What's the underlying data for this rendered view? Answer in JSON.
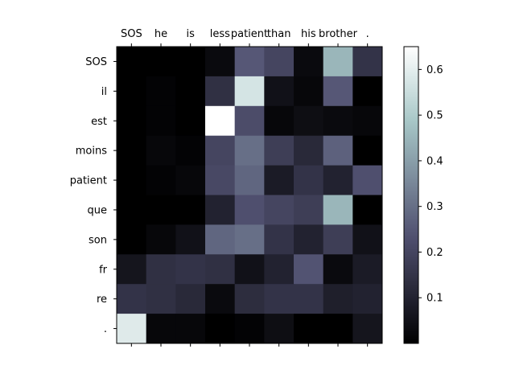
{
  "chart_data": {
    "type": "heatmap",
    "colormap": "bone",
    "x_labels": [
      "SOS",
      "he",
      "is",
      "less",
      "patient",
      "than",
      "his",
      "brother",
      "."
    ],
    "y_labels": [
      "SOS",
      "il",
      "est",
      "moins",
      "patient",
      "que",
      "son",
      "fr",
      "re",
      "."
    ],
    "values": [
      [
        0.0,
        0.0,
        0.0,
        0.03,
        0.25,
        0.2,
        0.03,
        0.45,
        0.15
      ],
      [
        0.0,
        0.01,
        0.0,
        0.14,
        0.57,
        0.05,
        0.02,
        0.25,
        0.0
      ],
      [
        0.0,
        0.01,
        0.0,
        0.65,
        0.22,
        0.02,
        0.04,
        0.03,
        0.02
      ],
      [
        0.0,
        0.02,
        0.01,
        0.2,
        0.3,
        0.18,
        0.12,
        0.27,
        0.0
      ],
      [
        0.0,
        0.01,
        0.02,
        0.21,
        0.28,
        0.08,
        0.15,
        0.1,
        0.23
      ],
      [
        0.0,
        0.0,
        0.0,
        0.1,
        0.23,
        0.2,
        0.18,
        0.45,
        0.0
      ],
      [
        0.0,
        0.02,
        0.05,
        0.28,
        0.3,
        0.15,
        0.1,
        0.18,
        0.05
      ],
      [
        0.06,
        0.14,
        0.15,
        0.14,
        0.05,
        0.1,
        0.24,
        0.03,
        0.08
      ],
      [
        0.15,
        0.14,
        0.12,
        0.03,
        0.13,
        0.15,
        0.15,
        0.09,
        0.1
      ],
      [
        0.59,
        0.02,
        0.02,
        0.0,
        0.01,
        0.04,
        0.0,
        0.0,
        0.06
      ]
    ],
    "vmin": 0.0,
    "vmax": 0.65,
    "colorbar_ticks": [
      0.1,
      0.2,
      0.3,
      0.4,
      0.5,
      0.6
    ]
  }
}
